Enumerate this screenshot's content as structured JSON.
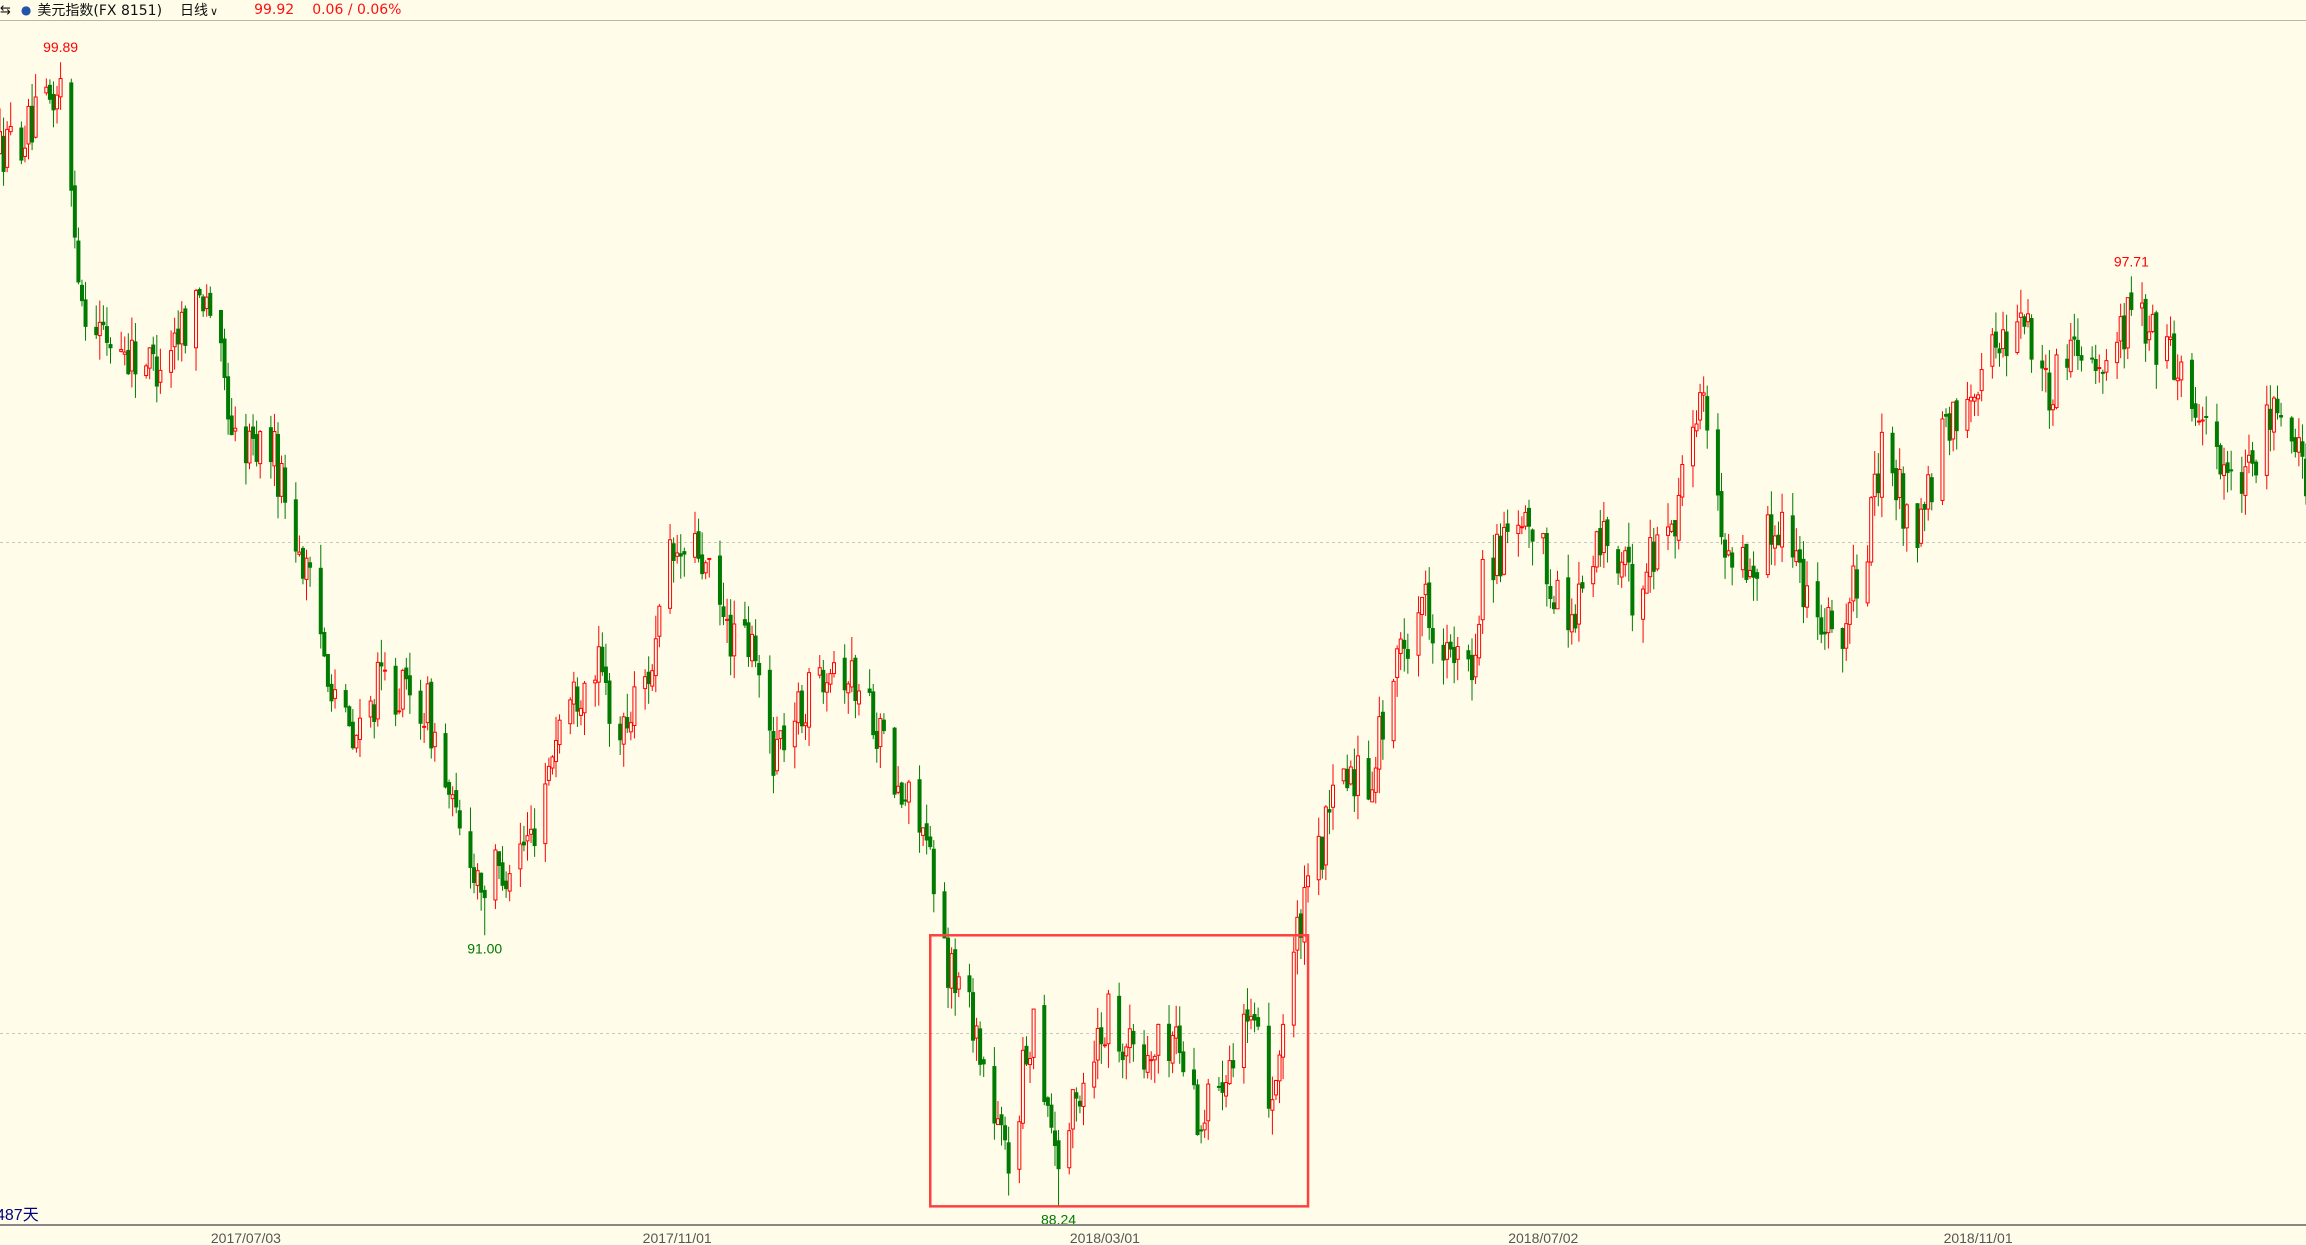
{
  "header": {
    "toggle_icon": "collapse-arrows-icon",
    "bullet_icon": "blue-dot-icon",
    "title": "美元指数(FX 8151)",
    "period": "日线",
    "period_icon": "chevron-down-icon",
    "last_price": "99.92",
    "change": "0.06 / 0.06%"
  },
  "footer": {
    "days_label": "487天"
  },
  "colors": {
    "background": "#fffdea",
    "up": "#ff0000",
    "down": "#007a00",
    "box": "#ff4040",
    "grid": "#c8c8c0",
    "high_label": "#ff0000",
    "low_label": "#007a00",
    "days_label": "#000080"
  },
  "chart_data": {
    "type": "candlestick",
    "title": "",
    "xlim": [
      "2017-04-25",
      "2019-02-01"
    ],
    "ylim": [
      88.05,
      100.32
    ],
    "grid_prices": [
      90,
      95
    ],
    "x_ticks": [
      "2017/07/03",
      "2017/11/01",
      "2018/03/01",
      "2018/07/02",
      "2018/11/01"
    ],
    "close_trace": [
      [
        "2017-04-25",
        99.0
      ],
      [
        "2017-05-03",
        99.2
      ],
      [
        "2017-05-12",
        99.6
      ],
      [
        "2017-05-18",
        97.5
      ],
      [
        "2017-05-24",
        97.1
      ],
      [
        "2017-06-07",
        96.8
      ],
      [
        "2017-06-22",
        97.6
      ],
      [
        "2017-06-30",
        96.0
      ],
      [
        "2017-07-10",
        96.0
      ],
      [
        "2017-07-17",
        95.1
      ],
      [
        "2017-07-25",
        93.9
      ],
      [
        "2017-08-02",
        92.9
      ],
      [
        "2017-08-10",
        93.6
      ],
      [
        "2017-08-23",
        93.3
      ],
      [
        "2017-08-31",
        92.1
      ],
      [
        "2017-09-08",
        91.5
      ],
      [
        "2017-09-21",
        92.0
      ],
      [
        "2017-09-29",
        93.2
      ],
      [
        "2017-10-09",
        93.8
      ],
      [
        "2017-10-16",
        93.0
      ],
      [
        "2017-10-26",
        93.9
      ],
      [
        "2017-10-30",
        94.8
      ],
      [
        "2017-11-07",
        94.9
      ],
      [
        "2017-11-15",
        94.1
      ],
      [
        "2017-11-22",
        93.9
      ],
      [
        "2017-11-28",
        92.9
      ],
      [
        "2017-12-06",
        93.3
      ],
      [
        "2017-12-14",
        93.9
      ],
      [
        "2017-12-26",
        93.3
      ],
      [
        "2018-01-02",
        92.4
      ],
      [
        "2018-01-08",
        92.3
      ],
      [
        "2018-01-15",
        90.8
      ],
      [
        "2018-01-23",
        90.2
      ],
      [
        "2018-01-29",
        89.1
      ],
      [
        "2018-02-02",
        88.7
      ],
      [
        "2018-02-09",
        90.2
      ],
      [
        "2018-02-16",
        88.7
      ],
      [
        "2018-02-26",
        89.9
      ],
      [
        "2018-03-02",
        90.2
      ],
      [
        "2018-03-12",
        89.7
      ],
      [
        "2018-03-21",
        90.0
      ],
      [
        "2018-03-28",
        89.1
      ],
      [
        "2018-04-09",
        90.2
      ],
      [
        "2018-04-17",
        89.4
      ],
      [
        "2018-04-23",
        90.8
      ],
      [
        "2018-04-30",
        91.8
      ],
      [
        "2018-05-07",
        92.7
      ],
      [
        "2018-05-14",
        92.6
      ],
      [
        "2018-05-21",
        93.6
      ],
      [
        "2018-05-29",
        94.5
      ],
      [
        "2018-06-06",
        93.8
      ],
      [
        "2018-06-12",
        93.6
      ],
      [
        "2018-06-15",
        94.8
      ],
      [
        "2018-06-29",
        95.1
      ],
      [
        "2018-07-09",
        94.2
      ],
      [
        "2018-07-19",
        95.1
      ],
      [
        "2018-07-27",
        94.5
      ],
      [
        "2018-08-09",
        95.4
      ],
      [
        "2018-08-15",
        96.6
      ],
      [
        "2018-08-21",
        95.1
      ],
      [
        "2018-08-29",
        94.7
      ],
      [
        "2018-09-07",
        95.3
      ],
      [
        "2018-09-14",
        94.5
      ],
      [
        "2018-09-24",
        94.1
      ],
      [
        "2018-10-01",
        95.0
      ],
      [
        "2018-10-05",
        95.9
      ],
      [
        "2018-10-15",
        95.1
      ],
      [
        "2018-10-22",
        96.0
      ],
      [
        "2018-11-02",
        96.8
      ],
      [
        "2018-11-14",
        97.4
      ],
      [
        "2018-11-20",
        96.5
      ],
      [
        "2018-11-28",
        97.1
      ],
      [
        "2018-12-07",
        96.8
      ],
      [
        "2018-12-14",
        97.4
      ],
      [
        "2018-12-27",
        96.8
      ],
      [
        "2019-01-04",
        96.2
      ],
      [
        "2019-01-14",
        95.4
      ],
      [
        "2019-01-21",
        96.2
      ],
      [
        "2019-01-28",
        96.3
      ],
      [
        "2019-02-01",
        95.6
      ]
    ],
    "annotations": [
      {
        "label": "99.89",
        "date": "2017-05-12",
        "price": 99.89,
        "kind": "high"
      },
      {
        "label": "91.00",
        "date": "2017-09-08",
        "price": 91.0,
        "kind": "low"
      },
      {
        "label": "88.24",
        "date": "2018-02-16",
        "price": 88.24,
        "kind": "low"
      },
      {
        "label": "97.71",
        "date": "2018-12-14",
        "price": 97.71,
        "kind": "high"
      }
    ],
    "highlight_box": {
      "date_from": "2018-01-11",
      "date_to": "2018-04-27",
      "price_low": 88.24,
      "price_high": 91.0
    }
  }
}
